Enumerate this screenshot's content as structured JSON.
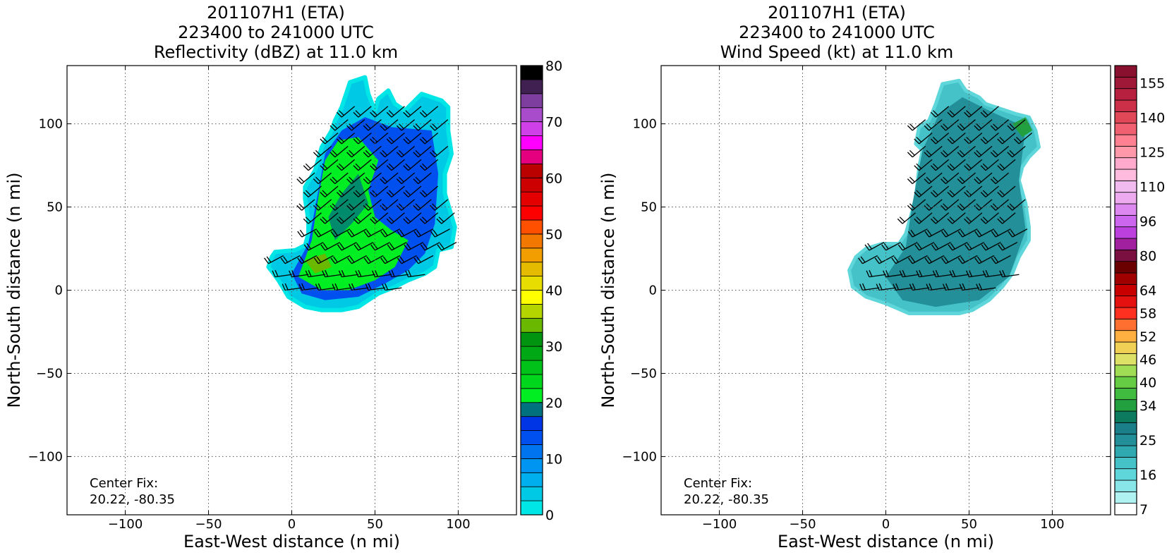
{
  "figure": {
    "panels": [
      {
        "title_lines": [
          "201107H1 (ETA)",
          "223400 to 241000 UTC",
          "Reflectivity (dBZ) at 11.0 km"
        ],
        "xlabel": "East-West distance (n mi)",
        "ylabel": "North-South distance (n mi)",
        "x_ticks": [
          "−100",
          "−50",
          "0",
          "50",
          "100"
        ],
        "y_ticks": [
          "100",
          "50",
          "0",
          "−50",
          "−100"
        ],
        "annotation_lines": [
          "Center Fix:",
          "20.22, -80.35"
        ],
        "colorbar_ticks": [
          "0",
          "10",
          "20",
          "30",
          "40",
          "50",
          "60",
          "70",
          "80"
        ]
      },
      {
        "title_lines": [
          "201107H1 (ETA)",
          "223400 to 241000 UTC",
          "Wind Speed (kt) at 11.0 km"
        ],
        "xlabel": "East-West distance (n mi)",
        "ylabel": "North-South distance (n mi)",
        "x_ticks": [
          "−100",
          "−50",
          "0",
          "50",
          "100"
        ],
        "y_ticks": [
          "100",
          "50",
          "0",
          "−50",
          "−100"
        ],
        "annotation_lines": [
          "Center Fix:",
          "20.22, -80.35"
        ],
        "colorbar_ticks": [
          "7",
          "16",
          "25",
          "34",
          "40",
          "46",
          "52",
          "58",
          "64",
          "80",
          "96",
          "110",
          "125",
          "140",
          "155"
        ]
      }
    ]
  },
  "chart_data": [
    {
      "type": "heatmap",
      "variable": "Reflectivity (dBZ)",
      "xlim": [
        -135,
        135
      ],
      "ylim": [
        -135,
        135
      ],
      "x_ticks": [
        -100,
        -50,
        0,
        50,
        100
      ],
      "y_ticks": [
        -100,
        -50,
        0,
        50,
        100
      ],
      "grid": true,
      "colorbar": {
        "min": 0,
        "max": 80,
        "step": 4,
        "ticks": [
          0,
          10,
          20,
          30,
          40,
          50,
          60,
          70,
          80
        ],
        "colors": [
          "#00e5e5",
          "#00c9e5",
          "#00b0ee",
          "#0095f0",
          "#0074ee",
          "#0050f0",
          "#0035e5",
          "#00727f",
          "#00ee22",
          "#00d61c",
          "#00c219",
          "#00a815",
          "#009410",
          "#6ab800",
          "#b5d500",
          "#ffff00",
          "#e8dd00",
          "#e5bb00",
          "#f29e00",
          "#f27800",
          "#ff5000",
          "#ff0000",
          "#e50000",
          "#cc0000",
          "#bb0000",
          "#e5007f",
          "#ff00ff",
          "#d040e8",
          "#a84ccc",
          "#7d3ea0",
          "#402050",
          "#000000"
        ],
        "label_count": 20
      },
      "echo_region": {
        "outline_n_mi": [
          [
            -12,
            20
          ],
          [
            -10,
            23
          ],
          [
            2,
            24
          ],
          [
            8,
            27
          ],
          [
            10,
            34
          ],
          [
            10,
            42
          ],
          [
            8,
            55
          ],
          [
            8,
            62
          ],
          [
            14,
            72
          ],
          [
            18,
            86
          ],
          [
            24,
            96
          ],
          [
            26,
            102
          ],
          [
            30,
            110
          ],
          [
            35,
            125
          ],
          [
            44,
            128
          ],
          [
            46,
            118
          ],
          [
            50,
            108
          ],
          [
            52,
            115
          ],
          [
            58,
            120
          ],
          [
            62,
            112
          ],
          [
            68,
            108
          ],
          [
            78,
            118
          ],
          [
            90,
            114
          ],
          [
            94,
            110
          ],
          [
            94,
            96
          ],
          [
            96,
            82
          ],
          [
            92,
            70
          ],
          [
            92,
            58
          ],
          [
            98,
            38
          ],
          [
            96,
            26
          ],
          [
            88,
            24
          ],
          [
            86,
            14
          ],
          [
            80,
            10
          ],
          [
            70,
            6
          ],
          [
            62,
            2
          ],
          [
            52,
            -2
          ],
          [
            46,
            -6
          ],
          [
            40,
            -10
          ],
          [
            30,
            -12
          ],
          [
            18,
            -12
          ],
          [
            8,
            -10
          ],
          [
            -2,
            -4
          ],
          [
            -8,
            6
          ],
          [
            -14,
            14
          ]
        ],
        "intensity_dBZ_typical": [
          4,
          24
        ]
      },
      "wind_barbs": "present"
    },
    {
      "type": "heatmap",
      "variable": "Wind Speed (kt)",
      "xlim": [
        -135,
        135
      ],
      "ylim": [
        -135,
        135
      ],
      "x_ticks": [
        -100,
        -50,
        0,
        50,
        100
      ],
      "y_ticks": [
        -100,
        -50,
        0,
        50,
        100
      ],
      "grid": true,
      "colorbar": {
        "ticks": [
          7,
          16,
          25,
          34,
          40,
          46,
          52,
          58,
          64,
          80,
          96,
          110,
          125,
          140,
          155
        ],
        "colors": [
          "#ffffff",
          "#b0f2f2",
          "#88e5e8",
          "#5ed6da",
          "#44c2c8",
          "#30a8b0",
          "#238f98",
          "#1a7f88",
          "#0b7a5e",
          "#22a040",
          "#40bb40",
          "#66cc44",
          "#a0dd55",
          "#dde266",
          "#f0d055",
          "#ffb040",
          "#ff7030",
          "#ff3020",
          "#e51010",
          "#c80000",
          "#a00000",
          "#6a0000",
          "#7a1040",
          "#a020a0",
          "#bb40dd",
          "#cc66ee",
          "#dd88f0",
          "#eeaaee",
          "#f2bbf0",
          "#ffbbdd",
          "#ffaacc",
          "#ff99aa",
          "#ff8090",
          "#f06070",
          "#e04858",
          "#cc3048",
          "#b82040",
          "#a01838",
          "#8a1030"
        ],
        "label_count": 38
      },
      "echo_region": {
        "outline_n_mi": [
          [
            -18,
            20
          ],
          [
            -12,
            25
          ],
          [
            -2,
            28
          ],
          [
            8,
            28
          ],
          [
            12,
            34
          ],
          [
            16,
            48
          ],
          [
            18,
            56
          ],
          [
            20,
            74
          ],
          [
            22,
            84
          ],
          [
            18,
            88
          ],
          [
            20,
            98
          ],
          [
            26,
            102
          ],
          [
            30,
            112
          ],
          [
            34,
            124
          ],
          [
            44,
            126
          ],
          [
            48,
            120
          ],
          [
            56,
            116
          ],
          [
            60,
            112
          ],
          [
            66,
            110
          ],
          [
            78,
            106
          ],
          [
            86,
            104
          ],
          [
            90,
            96
          ],
          [
            92,
            86
          ],
          [
            86,
            80
          ],
          [
            82,
            74
          ],
          [
            80,
            66
          ],
          [
            84,
            52
          ],
          [
            86,
            38
          ],
          [
            86,
            30
          ],
          [
            80,
            20
          ],
          [
            76,
            10
          ],
          [
            70,
            2
          ],
          [
            62,
            -6
          ],
          [
            52,
            -12
          ],
          [
            44,
            -14
          ],
          [
            30,
            -14
          ],
          [
            14,
            -14
          ],
          [
            0,
            -8
          ],
          [
            -12,
            -4
          ],
          [
            -20,
            2
          ],
          [
            -22,
            12
          ]
        ],
        "intensity_kt_typical": [
          16,
          34
        ]
      },
      "wind_barbs": "present"
    }
  ]
}
